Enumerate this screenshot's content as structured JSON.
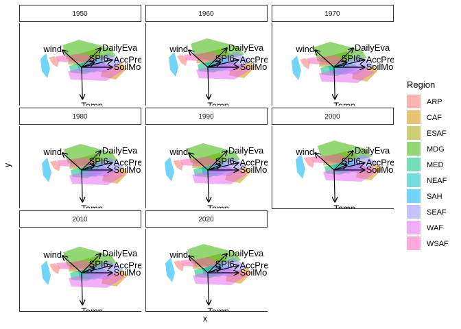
{
  "chart_data": {
    "type": "scatter",
    "subtype": "faceted biplot with convex hulls",
    "xlabel": "x",
    "ylabel": "y",
    "facets": [
      "1950",
      "1960",
      "1970",
      "1980",
      "1990",
      "2000",
      "2010",
      "2020"
    ],
    "legend": {
      "title": "Region",
      "placement": "right",
      "items": [
        {
          "name": "ARP",
          "color": "#F8766D"
        },
        {
          "name": "CAF",
          "color": "#D89000"
        },
        {
          "name": "ESAF",
          "color": "#A3A500"
        },
        {
          "name": "MDG",
          "color": "#39B600"
        },
        {
          "name": "MED",
          "color": "#00BF7D"
        },
        {
          "name": "NEAF",
          "color": "#00BFC4"
        },
        {
          "name": "SAH",
          "color": "#00B0F6"
        },
        {
          "name": "SEAF",
          "color": "#9590FF"
        },
        {
          "name": "WAF",
          "color": "#E76BF3"
        },
        {
          "name": "WSAF",
          "color": "#FF62BC"
        }
      ]
    },
    "vectors": [
      {
        "name": "wind",
        "x": -0.45,
        "y": 0.4
      },
      {
        "name": "DailyEva",
        "x": 0.45,
        "y": 0.45
      },
      {
        "name": "SPI6",
        "x": 0.3,
        "y": 0.12
      },
      {
        "name": "AccPre",
        "x": 0.72,
        "y": 0.17
      },
      {
        "name": "SoilMo",
        "x": 0.72,
        "y": 0.0
      },
      {
        "name": "Temp",
        "x": 0.02,
        "y": -0.75
      }
    ],
    "hull_opacity": 0.55,
    "grid": false
  }
}
